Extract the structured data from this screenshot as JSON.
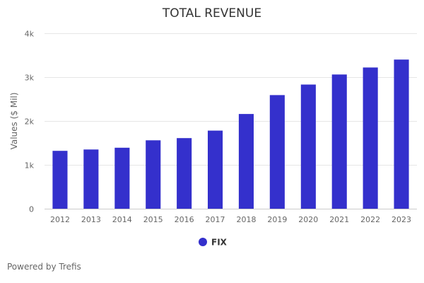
{
  "chart_data": {
    "type": "bar",
    "title": "TOTAL REVENUE",
    "xlabel": "",
    "ylabel": "Values ($ Mil)",
    "categories": [
      "2012",
      "2013",
      "2014",
      "2015",
      "2016",
      "2017",
      "2018",
      "2019",
      "2020",
      "2021",
      "2022",
      "2023"
    ],
    "series": [
      {
        "name": "FIX",
        "values": [
          1320,
          1350,
          1390,
          1560,
          1610,
          1780,
          2160,
          2590,
          2830,
          3060,
          3220,
          3400
        ]
      }
    ],
    "ylim": [
      0,
      4000
    ],
    "yticks": [
      0,
      1000,
      2000,
      3000,
      4000
    ],
    "ytick_labels": [
      "0",
      "1k",
      "2k",
      "3k",
      "4k"
    ],
    "grid": true,
    "legend_position": "bottom-center",
    "colors": {
      "bar": "#3430cc",
      "grid": "#e6e6e6",
      "axis": "#cccccc"
    }
  },
  "footer": {
    "credit": "Powered by Trefis"
  }
}
